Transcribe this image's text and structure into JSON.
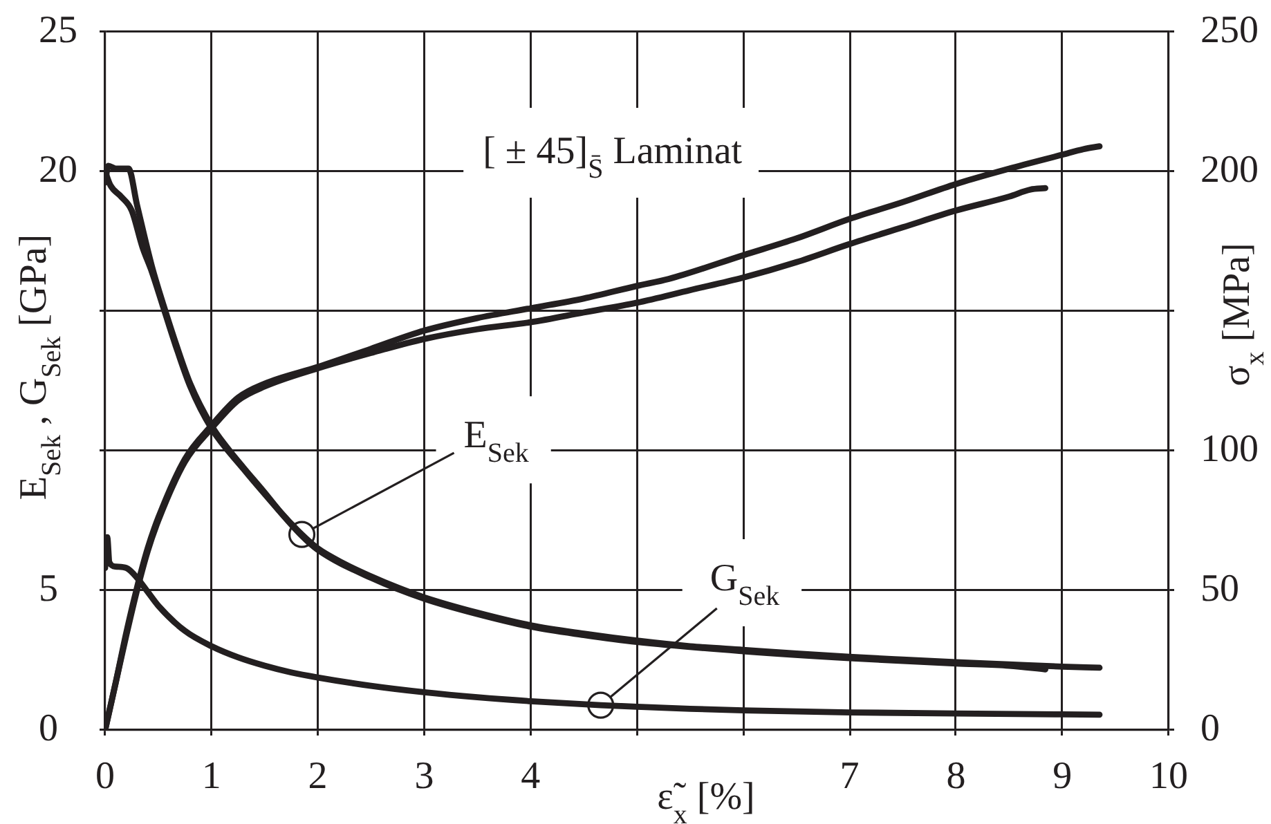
{
  "chart_data": {
    "type": "line",
    "title": "[ ± 45]$_{S̄}$ Laminat",
    "xlabel": "ε̃$_{x}$ [%]",
    "ylabel": "E$_{Sek}$ , G$_{Sek}$ [GPa]",
    "y2label": "σ$_{x}$ [MPa]",
    "xlim": [
      0,
      10
    ],
    "xticks": [
      0,
      1,
      2,
      3,
      4,
      {
        "value": 5,
        "label": null
      },
      {
        "value": 6,
        "label": null
      },
      7,
      8,
      9,
      10
    ],
    "ylim": [
      0,
      25
    ],
    "yticks": [
      0,
      5,
      {
        "value": 10,
        "label": null
      },
      {
        "value": 15,
        "label": null
      },
      20,
      25
    ],
    "y2lim": [
      0,
      250
    ],
    "y2ticks": [
      0,
      50,
      100,
      {
        "value": 150,
        "label": null
      },
      200,
      250
    ],
    "grid": true,
    "marker": "none",
    "line_style": "solid",
    "series": [
      {
        "color": "#231f20",
        "x": [
          0,
          0.03,
          0.1,
          0.22,
          0.3,
          0.44,
          0.55,
          0.66,
          0.8,
          1.0,
          1.15,
          1.3,
          1.5,
          1.65,
          1.85,
          2.0,
          2.25,
          2.5,
          2.75,
          3.0,
          3.5,
          4.0,
          4.5,
          5.0,
          5.5,
          6.0,
          6.5,
          7.0,
          7.5,
          8.0,
          8.5,
          9.0,
          9.35
        ],
        "values": [
          19.6,
          20.2,
          20.1,
          20.1,
          18.8,
          16.6,
          15.2,
          13.9,
          12.4,
          10.9,
          10.1,
          9.4,
          8.5,
          7.8,
          7.0,
          6.5,
          5.95,
          5.5,
          5.1,
          4.75,
          4.2,
          3.75,
          3.45,
          3.2,
          3.0,
          2.87,
          2.74,
          2.62,
          2.52,
          2.43,
          2.35,
          2.27,
          2.23
        ]
      },
      {
        "color": "#231f20",
        "x": [
          0,
          0.05,
          0.15,
          0.25,
          0.35,
          0.44,
          0.55,
          0.66,
          0.8,
          1.0,
          1.3,
          1.5,
          1.85,
          2.0,
          2.5,
          3.0,
          3.5,
          4.0,
          4.5,
          5.0,
          6.0,
          7.0,
          8.0,
          8.5,
          8.84
        ],
        "values": [
          20.0,
          19.5,
          19.1,
          18.6,
          17.3,
          16.4,
          15.1,
          13.8,
          12.3,
          10.8,
          9.35,
          8.45,
          6.95,
          6.45,
          5.45,
          4.7,
          4.15,
          3.7,
          3.4,
          3.15,
          2.82,
          2.57,
          2.38,
          2.3,
          2.17
        ]
      },
      {
        "color": "#231f20",
        "x": [
          0,
          0.02,
          0.04,
          0.1,
          0.2,
          0.3,
          0.4,
          0.5,
          0.75,
          1.0,
          1.25,
          1.5,
          1.75,
          2.0,
          2.5,
          3.0,
          3.5,
          4.0,
          4.66,
          5.0,
          5.5,
          6.0,
          7.0,
          8.0,
          9.0,
          9.35
        ],
        "values": [
          5.8,
          6.9,
          6.0,
          5.85,
          5.8,
          5.45,
          4.95,
          4.45,
          3.55,
          3.0,
          2.6,
          2.3,
          2.06,
          1.88,
          1.58,
          1.35,
          1.17,
          1.03,
          0.89,
          0.83,
          0.76,
          0.7,
          0.63,
          0.59,
          0.56,
          0.55
        ]
      },
      {
        "color": "#231f20",
        "axis": "y2",
        "x": [
          0,
          0.1,
          0.2,
          0.3,
          0.4,
          0.5,
          0.75,
          1.0,
          1.25,
          1.5,
          2.0,
          2.5,
          3.0,
          3.5,
          4.0,
          4.5,
          5.0,
          5.3,
          6.0,
          6.5,
          7.0,
          7.5,
          8.0,
          8.5,
          9.0,
          9.2,
          9.35
        ],
        "values": [
          0,
          17,
          35,
          51,
          65,
          76,
          97,
          109,
          119,
          124,
          130,
          136.5,
          143,
          147.5,
          151,
          154.5,
          159,
          161.5,
          170,
          176,
          183,
          189,
          195.5,
          201,
          206,
          208,
          209
        ]
      },
      {
        "color": "#231f20",
        "axis": "y2",
        "x": [
          0,
          0.1,
          0.2,
          0.3,
          0.4,
          0.5,
          0.75,
          1.0,
          1.25,
          1.5,
          2.0,
          2.5,
          3.0,
          3.5,
          4.0,
          4.5,
          5.0,
          5.5,
          6.0,
          6.5,
          7.0,
          7.5,
          8.0,
          8.5,
          8.7,
          8.84
        ],
        "values": [
          0,
          17,
          34,
          50,
          64,
          75,
          96,
          108,
          118,
          123,
          129.5,
          135,
          140,
          143.5,
          146,
          149.5,
          153,
          157.5,
          162,
          167.5,
          174,
          180,
          186,
          191,
          193.5,
          194
        ]
      }
    ],
    "annotations": [
      {
        "text": "E$_{Sek}$",
        "x": 1.85,
        "y": 7.0
      },
      {
        "text": "G$_{Sek}$",
        "x": 4.66,
        "y": 0.89
      }
    ]
  }
}
